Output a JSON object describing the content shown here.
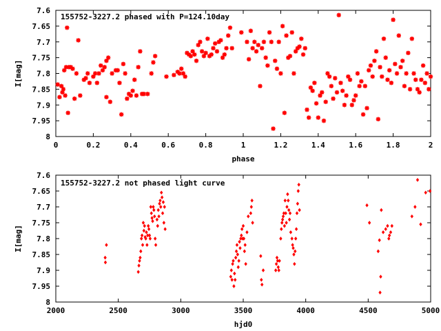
{
  "chart_data": [
    {
      "type": "scatter",
      "title": "155752-3227.2 phased with P=124.10day",
      "xlabel": "phase",
      "ylabel": "I[mag]",
      "xlim": [
        0,
        2
      ],
      "ylim": [
        7.6,
        8
      ],
      "y_inverted": true,
      "grid": false,
      "marker_color": "#ff0000",
      "marker": "star",
      "x_ticks": [
        "0",
        "0.2",
        "0.4",
        "0.6",
        "0.8",
        "1",
        "1.2",
        "1.4",
        "1.6",
        "1.8",
        "2"
      ],
      "y_ticks": [
        "7.6",
        "7.65",
        "7.7",
        "7.75",
        "7.8",
        "7.85",
        "7.9",
        "7.95",
        "8"
      ],
      "points": [
        [
          0.01,
          7.835
        ],
        [
          0.02,
          7.875
        ],
        [
          0.03,
          7.84
        ],
        [
          0.035,
          7.86
        ],
        [
          0.04,
          7.85
        ],
        [
          0.045,
          7.79
        ],
        [
          0.05,
          7.87
        ],
        [
          0.055,
          7.78
        ],
        [
          0.06,
          7.655
        ],
        [
          0.065,
          7.925
        ],
        [
          0.07,
          7.78
        ],
        [
          0.08,
          7.78
        ],
        [
          0.09,
          7.785
        ],
        [
          0.1,
          7.88
        ],
        [
          0.11,
          7.8
        ],
        [
          0.12,
          7.695
        ],
        [
          0.13,
          7.87
        ],
        [
          0.15,
          7.82
        ],
        [
          0.16,
          7.815
        ],
        [
          0.17,
          7.8
        ],
        [
          0.18,
          7.83
        ],
        [
          0.2,
          7.81
        ],
        [
          0.21,
          7.8
        ],
        [
          0.22,
          7.83
        ],
        [
          0.23,
          7.8
        ],
        [
          0.24,
          7.775
        ],
        [
          0.25,
          7.79
        ],
        [
          0.26,
          7.78
        ],
        [
          0.27,
          7.76
        ],
        [
          0.27,
          7.875
        ],
        [
          0.28,
          7.75
        ],
        [
          0.29,
          7.89
        ],
        [
          0.3,
          7.8
        ],
        [
          0.32,
          7.79
        ],
        [
          0.33,
          7.79
        ],
        [
          0.34,
          7.83
        ],
        [
          0.35,
          7.93
        ],
        [
          0.36,
          7.77
        ],
        [
          0.37,
          7.8
        ],
        [
          0.38,
          7.88
        ],
        [
          0.39,
          7.865
        ],
        [
          0.4,
          7.87
        ],
        [
          0.41,
          7.855
        ],
        [
          0.42,
          7.82
        ],
        [
          0.43,
          7.87
        ],
        [
          0.44,
          7.78
        ],
        [
          0.45,
          7.73
        ],
        [
          0.46,
          7.865
        ],
        [
          0.47,
          7.865
        ],
        [
          0.49,
          7.865
        ],
        [
          0.51,
          7.8
        ],
        [
          0.52,
          7.765
        ],
        [
          0.53,
          7.745
        ],
        [
          0.59,
          7.81
        ],
        [
          0.63,
          7.805
        ],
        [
          0.65,
          7.795
        ],
        [
          0.66,
          7.8
        ],
        [
          0.67,
          7.785
        ],
        [
          0.68,
          7.8
        ],
        [
          0.69,
          7.81
        ],
        [
          0.7,
          7.735
        ],
        [
          0.71,
          7.74
        ],
        [
          0.72,
          7.745
        ],
        [
          0.73,
          7.73
        ],
        [
          0.74,
          7.74
        ],
        [
          0.75,
          7.76
        ],
        [
          0.76,
          7.71
        ],
        [
          0.77,
          7.7
        ],
        [
          0.78,
          7.73
        ],
        [
          0.79,
          7.745
        ],
        [
          0.8,
          7.735
        ],
        [
          0.81,
          7.69
        ],
        [
          0.82,
          7.745
        ],
        [
          0.83,
          7.74
        ],
        [
          0.84,
          7.72
        ],
        [
          0.85,
          7.705
        ],
        [
          0.86,
          7.73
        ],
        [
          0.87,
          7.7
        ],
        [
          0.88,
          7.695
        ],
        [
          0.89,
          7.75
        ],
        [
          0.9,
          7.74
        ],
        [
          0.91,
          7.72
        ],
        [
          0.92,
          7.68
        ],
        [
          0.93,
          7.655
        ],
        [
          0.94,
          7.72
        ],
        [
          0.99,
          7.67
        ],
        [
          1.02,
          7.7
        ],
        [
          1.03,
          7.755
        ],
        [
          1.04,
          7.665
        ],
        [
          1.05,
          7.72
        ],
        [
          1.06,
          7.7
        ],
        [
          1.07,
          7.73
        ],
        [
          1.08,
          7.71
        ],
        [
          1.09,
          7.84
        ],
        [
          1.1,
          7.72
        ],
        [
          1.11,
          7.7
        ],
        [
          1.12,
          7.75
        ],
        [
          1.13,
          7.775
        ],
        [
          1.14,
          7.67
        ],
        [
          1.15,
          7.7
        ],
        [
          1.16,
          7.975
        ],
        [
          1.17,
          7.76
        ],
        [
          1.18,
          7.785
        ],
        [
          1.19,
          7.7
        ],
        [
          1.2,
          7.8
        ],
        [
          1.21,
          7.65
        ],
        [
          1.22,
          7.925
        ],
        [
          1.23,
          7.68
        ],
        [
          1.24,
          7.75
        ],
        [
          1.25,
          7.745
        ],
        [
          1.26,
          7.67
        ],
        [
          1.27,
          7.8
        ],
        [
          1.28,
          7.73
        ],
        [
          1.29,
          7.72
        ],
        [
          1.3,
          7.715
        ],
        [
          1.31,
          7.69
        ],
        [
          1.32,
          7.74
        ],
        [
          1.33,
          7.72
        ],
        [
          1.34,
          7.915
        ],
        [
          1.35,
          7.94
        ],
        [
          1.36,
          7.845
        ],
        [
          1.37,
          7.855
        ],
        [
          1.38,
          7.83
        ],
        [
          1.39,
          7.895
        ],
        [
          1.4,
          7.94
        ],
        [
          1.41,
          7.87
        ],
        [
          1.42,
          7.86
        ],
        [
          1.43,
          7.95
        ],
        [
          1.44,
          7.89
        ],
        [
          1.45,
          7.8
        ],
        [
          1.46,
          7.81
        ],
        [
          1.47,
          7.84
        ],
        [
          1.48,
          7.88
        ],
        [
          1.49,
          7.815
        ],
        [
          1.5,
          7.86
        ],
        [
          1.51,
          7.615
        ],
        [
          1.52,
          7.83
        ],
        [
          1.53,
          7.855
        ],
        [
          1.54,
          7.9
        ],
        [
          1.55,
          7.87
        ],
        [
          1.56,
          7.81
        ],
        [
          1.57,
          7.82
        ],
        [
          1.58,
          7.9
        ],
        [
          1.59,
          7.885
        ],
        [
          1.6,
          7.87
        ],
        [
          1.61,
          7.8
        ],
        [
          1.62,
          7.84
        ],
        [
          1.63,
          7.825
        ],
        [
          1.64,
          7.93
        ],
        [
          1.65,
          7.84
        ],
        [
          1.66,
          7.91
        ],
        [
          1.67,
          7.79
        ],
        [
          1.68,
          7.775
        ],
        [
          1.69,
          7.81
        ],
        [
          1.7,
          7.76
        ],
        [
          1.71,
          7.73
        ],
        [
          1.72,
          7.945
        ],
        [
          1.73,
          7.78
        ],
        [
          1.74,
          7.81
        ],
        [
          1.75,
          7.69
        ],
        [
          1.76,
          7.75
        ],
        [
          1.77,
          7.82
        ],
        [
          1.78,
          7.79
        ],
        [
          1.79,
          7.83
        ],
        [
          1.8,
          7.63
        ],
        [
          1.81,
          7.77
        ],
        [
          1.82,
          7.8
        ],
        [
          1.83,
          7.68
        ],
        [
          1.84,
          7.78
        ],
        [
          1.85,
          7.76
        ],
        [
          1.86,
          7.84
        ],
        [
          1.87,
          7.8
        ],
        [
          1.88,
          7.735
        ],
        [
          1.89,
          7.85
        ],
        [
          1.9,
          7.69
        ],
        [
          1.91,
          7.8
        ],
        [
          1.92,
          7.82
        ],
        [
          1.93,
          7.85
        ],
        [
          1.94,
          7.86
        ],
        [
          1.95,
          7.82
        ],
        [
          1.96,
          7.775
        ],
        [
          1.97,
          7.83
        ],
        [
          1.98,
          7.8
        ],
        [
          1.99,
          7.85
        ],
        [
          2.0,
          7.81
        ]
      ]
    },
    {
      "type": "scatter",
      "title": "155752-3227.2 not phased light curve",
      "xlabel": "hjd0",
      "ylabel": "I[mag]",
      "xlim": [
        2000,
        5000
      ],
      "ylim": [
        7.6,
        8
      ],
      "y_inverted": true,
      "grid": false,
      "marker_color": "#ff0000",
      "marker": "diamond",
      "x_ticks": [
        "2000",
        "2500",
        "3000",
        "3500",
        "4000",
        "4500",
        "5000"
      ],
      "y_ticks": [
        "7.6",
        "7.65",
        "7.7",
        "7.75",
        "7.8",
        "7.85",
        "7.9",
        "7.95",
        "8"
      ],
      "points": [
        [
          2395,
          7.86
        ],
        [
          2397,
          7.875
        ],
        [
          2405,
          7.82
        ],
        [
          2660,
          7.905
        ],
        [
          2665,
          7.885
        ],
        [
          2670,
          7.87
        ],
        [
          2675,
          7.86
        ],
        [
          2680,
          7.84
        ],
        [
          2685,
          7.8
        ],
        [
          2690,
          7.79
        ],
        [
          2695,
          7.82
        ],
        [
          2700,
          7.75
        ],
        [
          2705,
          7.775
        ],
        [
          2710,
          7.76
        ],
        [
          2715,
          7.795
        ],
        [
          2720,
          7.8
        ],
        [
          2725,
          7.78
        ],
        [
          2730,
          7.82
        ],
        [
          2735,
          7.79
        ],
        [
          2740,
          7.76
        ],
        [
          2745,
          7.77
        ],
        [
          2750,
          7.79
        ],
        [
          2755,
          7.8
        ],
        [
          2760,
          7.7
        ],
        [
          2765,
          7.72
        ],
        [
          2770,
          7.735
        ],
        [
          2775,
          7.745
        ],
        [
          2780,
          7.7
        ],
        [
          2785,
          7.71
        ],
        [
          2790,
          7.73
        ],
        [
          2795,
          7.8
        ],
        [
          2800,
          7.82
        ],
        [
          2810,
          7.74
        ],
        [
          2815,
          7.76
        ],
        [
          2820,
          7.71
        ],
        [
          2825,
          7.73
        ],
        [
          2830,
          7.69
        ],
        [
          2835,
          7.68
        ],
        [
          2840,
          7.7
        ],
        [
          2845,
          7.655
        ],
        [
          2850,
          7.67
        ],
        [
          2855,
          7.72
        ],
        [
          2860,
          7.685
        ],
        [
          2865,
          7.75
        ],
        [
          2870,
          7.7
        ],
        [
          2875,
          7.77
        ],
        [
          3400,
          7.92
        ],
        [
          3405,
          7.9
        ],
        [
          3410,
          7.93
        ],
        [
          3415,
          7.88
        ],
        [
          3420,
          7.87
        ],
        [
          3425,
          7.95
        ],
        [
          3430,
          7.91
        ],
        [
          3435,
          7.93
        ],
        [
          3440,
          7.86
        ],
        [
          3445,
          7.84
        ],
        [
          3450,
          7.82
        ],
        [
          3455,
          7.85
        ],
        [
          3460,
          7.89
        ],
        [
          3465,
          7.87
        ],
        [
          3470,
          7.81
        ],
        [
          3475,
          7.83
        ],
        [
          3480,
          7.8
        ],
        [
          3485,
          7.79
        ],
        [
          3490,
          7.77
        ],
        [
          3495,
          7.8
        ],
        [
          3500,
          7.76
        ],
        [
          3505,
          7.8
        ],
        [
          3510,
          7.84
        ],
        [
          3515,
          7.82
        ],
        [
          3520,
          7.88
        ],
        [
          3530,
          7.78
        ],
        [
          3540,
          7.73
        ],
        [
          3560,
          7.72
        ],
        [
          3565,
          7.7
        ],
        [
          3570,
          7.68
        ],
        [
          3575,
          7.75
        ],
        [
          3640,
          7.855
        ],
        [
          3645,
          7.93
        ],
        [
          3650,
          7.945
        ],
        [
          3660,
          7.9
        ],
        [
          3760,
          7.9
        ],
        [
          3765,
          7.88
        ],
        [
          3770,
          7.86
        ],
        [
          3775,
          7.87
        ],
        [
          3780,
          7.89
        ],
        [
          3785,
          7.9
        ],
        [
          3790,
          7.87
        ],
        [
          3800,
          7.8
        ],
        [
          3805,
          7.77
        ],
        [
          3810,
          7.75
        ],
        [
          3815,
          7.74
        ],
        [
          3820,
          7.73
        ],
        [
          3825,
          7.72
        ],
        [
          3830,
          7.76
        ],
        [
          3835,
          7.68
        ],
        [
          3840,
          7.72
        ],
        [
          3845,
          7.75
        ],
        [
          3850,
          7.7
        ],
        [
          3855,
          7.66
        ],
        [
          3860,
          7.68
        ],
        [
          3865,
          7.71
        ],
        [
          3870,
          7.74
        ],
        [
          3875,
          7.72
        ],
        [
          3880,
          7.78
        ],
        [
          3890,
          7.8
        ],
        [
          3895,
          7.82
        ],
        [
          3900,
          7.83
        ],
        [
          3905,
          7.85
        ],
        [
          3910,
          7.88
        ],
        [
          3915,
          7.84
        ],
        [
          3920,
          7.8
        ],
        [
          3925,
          7.77
        ],
        [
          3930,
          7.72
        ],
        [
          3935,
          7.69
        ],
        [
          3940,
          7.65
        ],
        [
          3945,
          7.63
        ],
        [
          3950,
          7.71
        ],
        [
          4490,
          7.695
        ],
        [
          4510,
          7.75
        ],
        [
          4580,
          7.84
        ],
        [
          4590,
          7.805
        ],
        [
          4595,
          7.97
        ],
        [
          4600,
          7.92
        ],
        [
          4605,
          7.71
        ],
        [
          4620,
          7.78
        ],
        [
          4640,
          7.77
        ],
        [
          4655,
          7.76
        ],
        [
          4665,
          7.8
        ],
        [
          4670,
          7.79
        ],
        [
          4680,
          7.78
        ],
        [
          4690,
          7.76
        ],
        [
          4850,
          7.73
        ],
        [
          4875,
          7.7
        ],
        [
          4895,
          7.615
        ],
        [
          4920,
          7.755
        ],
        [
          4960,
          7.655
        ],
        [
          4995,
          7.65
        ]
      ]
    }
  ]
}
